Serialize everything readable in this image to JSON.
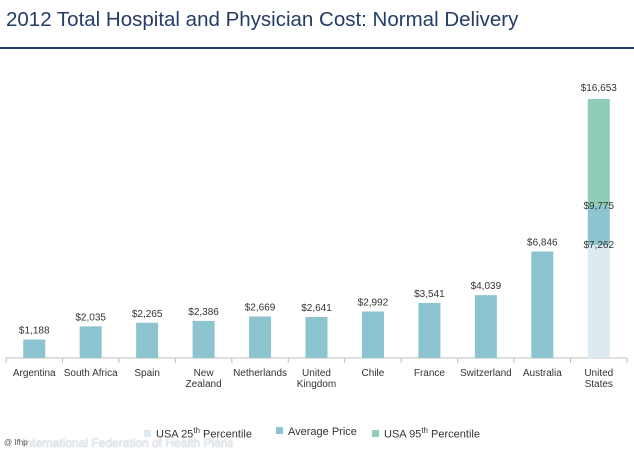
{
  "colors": {
    "bar": "#8cc4cf",
    "usa_25th": "#ddebf0",
    "usa_avg": "#8cc4cf",
    "usa_95th": "#8fcdb8",
    "title": "#243c66",
    "axis": "#bfbfbf",
    "text": "#333333"
  },
  "chart_data": {
    "type": "bar",
    "title": "2012 Total Hospital and Physician Cost: Normal Delivery",
    "xlabel": "",
    "ylabel": "",
    "ylim": [
      0,
      18000
    ],
    "categories": [
      [
        "Argentina"
      ],
      [
        "South Africa"
      ],
      [
        "Spain"
      ],
      [
        "New",
        "Zealand"
      ],
      [
        "Netherlands"
      ],
      [
        "United",
        "Kingdom"
      ],
      [
        "Chile"
      ],
      [
        "France"
      ],
      [
        "Switzerland"
      ],
      [
        "Australia"
      ],
      [
        "United",
        "States"
      ]
    ],
    "values": [
      1188,
      2035,
      2265,
      2386,
      2669,
      2641,
      2992,
      3541,
      4039,
      6846,
      null
    ],
    "value_labels": [
      "$1,188",
      "$2,035",
      "$2,265",
      "$2,386",
      "$2,669",
      "$2,641",
      "$2,992",
      "$3,541",
      "$4,039",
      "$6,846",
      "$16,653"
    ],
    "usa": {
      "p25": 7262,
      "average": 9775,
      "p95": 16653,
      "p25_label": "$7,262",
      "average_label": "$9,775",
      "p95_label": "$16,653"
    },
    "legend": [
      "USA 25th Percentile",
      "Average Price",
      "USA  95th Percentile"
    ]
  },
  "legend": {
    "p25": {
      "before": "USA 25",
      "sup": "th",
      "after": " Percentile"
    },
    "average": {
      "text": "Average Price"
    },
    "p95": {
      "before": "USA  95",
      "sup": "th",
      "after": " Percentile"
    }
  },
  "source": {
    "logo": "@ Ifhp",
    "text": "International Federation of Health Plans"
  }
}
